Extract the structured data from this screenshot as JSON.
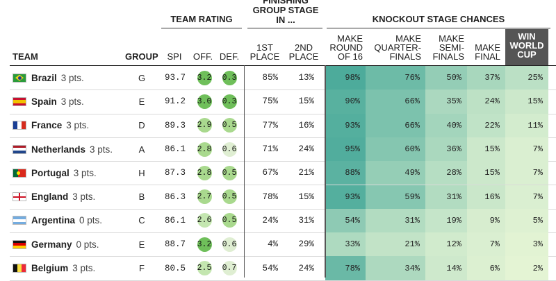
{
  "headers": {
    "team_rating": "TEAM RATING",
    "finishing_group_stage": [
      "FINISHING",
      "GROUP STAGE",
      "IN ..."
    ],
    "knockout_stage_chances": "KNOCKOUT STAGE CHANCES",
    "team": "TEAM",
    "group": "GROUP",
    "spi": "SPI",
    "off": "OFF.",
    "def": "DEF.",
    "first_place": [
      "1ST",
      "PLACE"
    ],
    "second_place": [
      "2ND",
      "PLACE"
    ],
    "make_round_of_16": [
      "MAKE",
      "ROUND",
      "OF 16"
    ],
    "make_quarterfinals": [
      "MAKE",
      "QUARTER-",
      "FINALS"
    ],
    "make_semifinals": [
      "MAKE",
      "SEMI-",
      "FINALS"
    ],
    "make_final": [
      "MAKE",
      "FINAL"
    ],
    "win_world_cup": [
      "WIN",
      "WORLD",
      "CUP"
    ]
  },
  "colors": {
    "dot_high": "#6fbf5a",
    "dot_mid": "#a9d98e",
    "dot_low": "#dfeed2",
    "ko_high": "#4aaa9a",
    "ko_low": "#e9f6d6",
    "win_header": "#555555"
  },
  "rows": [
    {
      "team": "Brazil",
      "pts": "3 pts.",
      "flag": "brazil-flag",
      "group": "G",
      "spi": "93.7",
      "off": "3.2",
      "def": "0.3",
      "first": "85%",
      "second": "13%",
      "r16": "98%",
      "qf": "76%",
      "sf": "50%",
      "final": "37%",
      "win": "25%"
    },
    {
      "team": "Spain",
      "pts": "3 pts.",
      "flag": "spain-flag",
      "group": "E",
      "spi": "91.2",
      "off": "3.0",
      "def": "0.3",
      "first": "75%",
      "second": "15%",
      "r16": "90%",
      "qf": "66%",
      "sf": "35%",
      "final": "24%",
      "win": "15%"
    },
    {
      "team": "France",
      "pts": "3 pts.",
      "flag": "france-flag",
      "group": "D",
      "spi": "89.3",
      "off": "2.9",
      "def": "0.5",
      "first": "77%",
      "second": "16%",
      "r16": "93%",
      "qf": "66%",
      "sf": "40%",
      "final": "22%",
      "win": "11%"
    },
    {
      "team": "Netherlands",
      "pts": "3 pts.",
      "flag": "netherlands-flag",
      "group": "A",
      "spi": "86.1",
      "off": "2.8",
      "def": "0.6",
      "first": "71%",
      "second": "24%",
      "r16": "95%",
      "qf": "60%",
      "sf": "36%",
      "final": "15%",
      "win": "7%"
    },
    {
      "team": "Portugal",
      "pts": "3 pts.",
      "flag": "portugal-flag",
      "group": "H",
      "spi": "87.3",
      "off": "2.8",
      "def": "0.5",
      "first": "67%",
      "second": "21%",
      "r16": "88%",
      "qf": "49%",
      "sf": "28%",
      "final": "15%",
      "win": "7%"
    },
    {
      "team": "England",
      "pts": "3 pts.",
      "flag": "england-flag",
      "group": "B",
      "spi": "86.3",
      "off": "2.7",
      "def": "0.5",
      "first": "78%",
      "second": "15%",
      "r16": "93%",
      "qf": "59%",
      "sf": "31%",
      "final": "16%",
      "win": "7%"
    },
    {
      "team": "Argentina",
      "pts": "0 pts.",
      "flag": "argentina-flag",
      "group": "C",
      "spi": "86.1",
      "off": "2.6",
      "def": "0.5",
      "first": "24%",
      "second": "31%",
      "r16": "54%",
      "qf": "31%",
      "sf": "19%",
      "final": "9%",
      "win": "5%"
    },
    {
      "team": "Germany",
      "pts": "0 pts.",
      "flag": "germany-flag",
      "group": "E",
      "spi": "88.7",
      "off": "3.2",
      "def": "0.6",
      "first": "4%",
      "second": "29%",
      "r16": "33%",
      "qf": "21%",
      "sf": "12%",
      "final": "7%",
      "win": "3%"
    },
    {
      "team": "Belgium",
      "pts": "3 pts.",
      "flag": "belgium-flag",
      "group": "F",
      "spi": "80.5",
      "off": "2.5",
      "def": "0.7",
      "first": "54%",
      "second": "24%",
      "r16": "78%",
      "qf": "34%",
      "sf": "14%",
      "final": "6%",
      "win": "2%"
    }
  ]
}
